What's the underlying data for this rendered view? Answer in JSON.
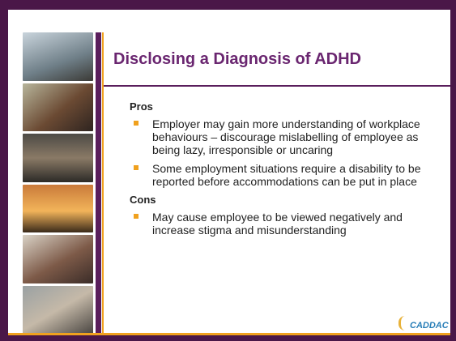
{
  "slide": {
    "title": "Disclosing a Diagnosis of ADHD",
    "sections": [
      {
        "heading": "Pros",
        "bullets": [
          "Employer may gain more understanding of workplace behaviours – discourage mislabelling of employee as being lazy, irresponsible  or uncaring",
          "Some employment situations require a disability to be reported before accommodations can be put in place"
        ]
      },
      {
        "heading": "Cons",
        "bullets": [
          "May cause employee to be viewed negatively and increase stigma and misunderstanding"
        ]
      }
    ],
    "logo": "CADDAC"
  }
}
